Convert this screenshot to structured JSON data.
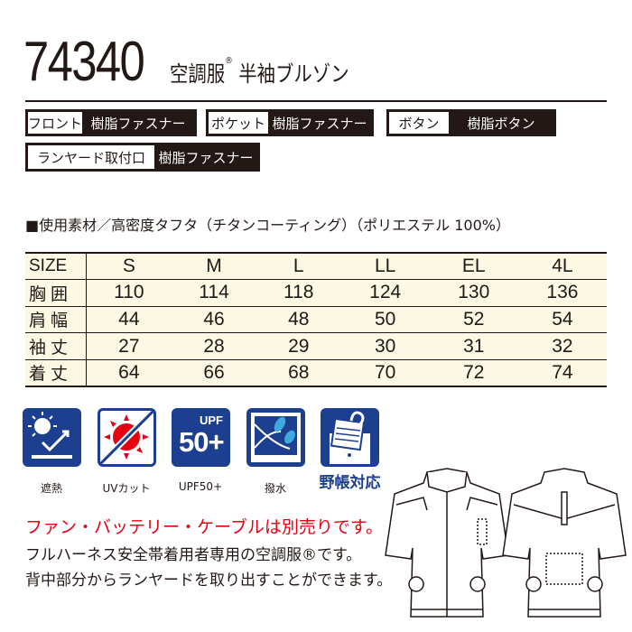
{
  "header": {
    "code": "74340",
    "name": "空調服",
    "reg": "®",
    "name2": "半袖ブルゾン"
  },
  "badges": [
    {
      "key": "フロント",
      "value": "樹脂ファスナー"
    },
    {
      "key": "ポケット",
      "value": "樹脂ファスナー"
    },
    {
      "key": "ボタン",
      "value": "樹脂ボタン"
    },
    {
      "key": "ランヤード取付口",
      "value": "樹脂ファスナー"
    }
  ],
  "material": "■使用素材／高密度タフタ（チタンコーティング）（ポリエステル 100%）",
  "size_table": {
    "header": [
      "SIZE",
      "S",
      "M",
      "L",
      "LL",
      "EL",
      "4L"
    ],
    "rows": [
      [
        "胸囲",
        "110",
        "114",
        "118",
        "124",
        "130",
        "136"
      ],
      [
        "肩幅",
        "44",
        "46",
        "48",
        "50",
        "52",
        "54"
      ],
      [
        "袖丈",
        "27",
        "28",
        "29",
        "30",
        "31",
        "32"
      ],
      [
        "着丈",
        "64",
        "66",
        "68",
        "70",
        "72",
        "74"
      ]
    ]
  },
  "features": [
    {
      "icon": "heat-shield-icon",
      "label": "遮熱"
    },
    {
      "icon": "uv-cut-icon",
      "label": "UVカット"
    },
    {
      "icon": "upf-icon",
      "label": "UPF50+",
      "badge_top": "UPF",
      "badge_main": "50+"
    },
    {
      "icon": "water-repellent-icon",
      "label": "撥水"
    },
    {
      "icon": "field-notebook-icon",
      "label": "野帳対応"
    }
  ],
  "notes": {
    "red": "ファン・バッテリー・ケーブルは別売りです。",
    "line1": "フルハーネス安全帯着用者専用の空調服®です。",
    "line2": "背中部分からランヤードを取り出すことができます。"
  },
  "colors": {
    "ink": "#231815",
    "icon_blue": "#1d3f8f",
    "red": "#e60012",
    "table_bg": "#fbf8e3"
  }
}
